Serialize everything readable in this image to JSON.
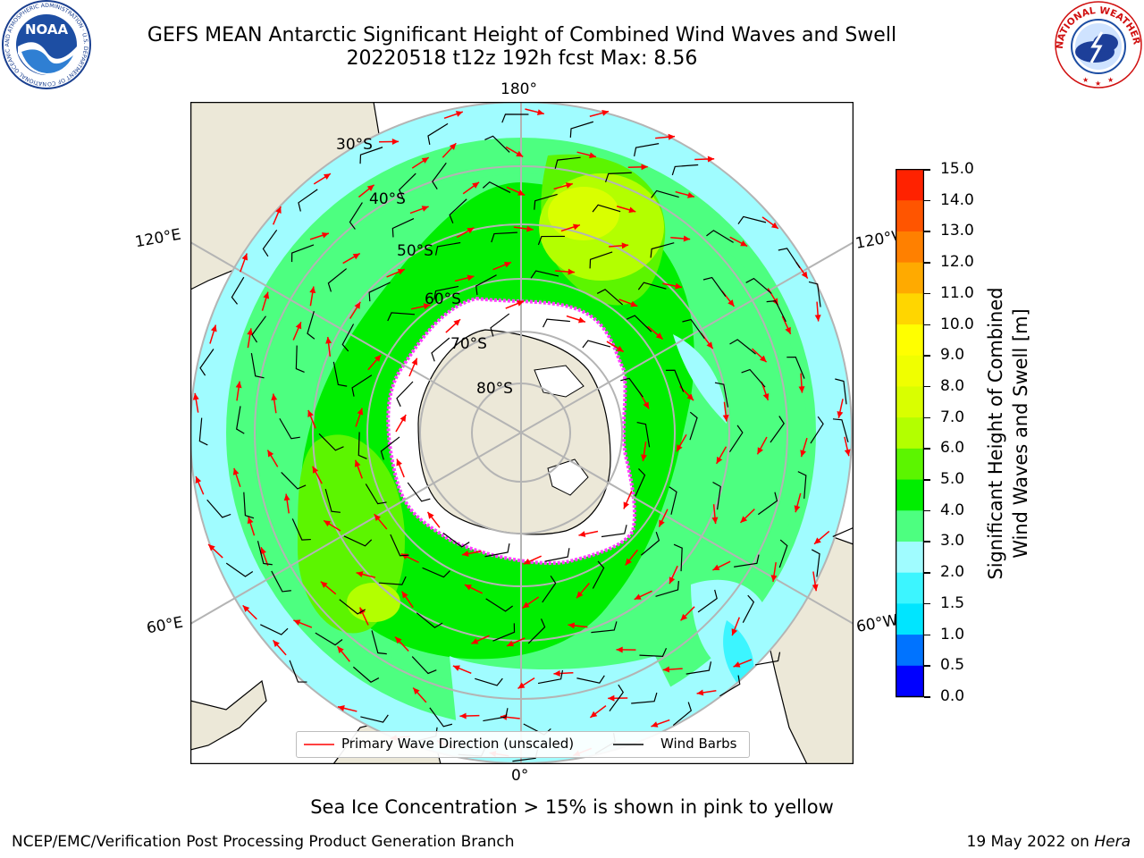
{
  "header": {
    "title_line1": "GEFS MEAN Antarctic Significant Height of Combined Wind Waves and Swell",
    "title_line2": "20220518 t12z 192h fcst   Max: 8.56"
  },
  "logos": {
    "noaa": {
      "text": "NOAA",
      "ring_text": "NATIONAL OCEANIC AND ATMOSPHERIC ADMINISTRATION · U.S. DEPARTMENT OF COMMERCE"
    },
    "nws": {
      "ring_text": "NATIONAL WEATHER SERVICE"
    }
  },
  "map": {
    "longitude_labels": {
      "top": "180°",
      "bottom": "0°",
      "left_upper": "120°E",
      "left_lower": "60°E",
      "right_upper": "120°W",
      "right_lower": "60°W"
    },
    "latitude_labels": [
      "30°S",
      "40°S",
      "50°S",
      "60°S",
      "70°S",
      "80°S"
    ],
    "colors": {
      "land": "#ece8d8",
      "ice_shelf": "#ffffff",
      "coast": "#000000",
      "grid": "#b4b4b4",
      "wave_arrow": "#ff0000",
      "wind_barb": "#000000",
      "sea_ice": "#ff40ff"
    }
  },
  "legend": {
    "items": [
      {
        "label": "Primary Wave Direction (unscaled)",
        "color": "#ff0000"
      },
      {
        "label": "Wind Barbs",
        "color": "#000000"
      }
    ]
  },
  "colorbar": {
    "label_line1": "Significant Height of Combined",
    "label_line2": "Wind Waves and Swell [m]",
    "ticks": [
      "0.0",
      "0.5",
      "1.0",
      "1.5",
      "2.0",
      "3.0",
      "4.0",
      "5.0",
      "6.0",
      "7.0",
      "8.0",
      "9.0",
      "10.0",
      "11.0",
      "12.0",
      "13.0",
      "14.0",
      "15.0"
    ],
    "colors": [
      "#0000ff",
      "#0073ff",
      "#00e5ff",
      "#3cf5ff",
      "#a0fcff",
      "#4dff80",
      "#00ee00",
      "#5cf500",
      "#b3ff00",
      "#d9ff00",
      "#f0ff00",
      "#ffff00",
      "#ffd600",
      "#ffaa00",
      "#ff8000",
      "#ff5500",
      "#ff2200"
    ]
  },
  "footer": {
    "caption": "Sea Ice Concentration > 15% is shown in pink to yellow",
    "left": "NCEP/EMC/Verification Post Processing Product Generation Branch",
    "right_prefix": "19 May 2022 on ",
    "right_italic": "Hera"
  }
}
